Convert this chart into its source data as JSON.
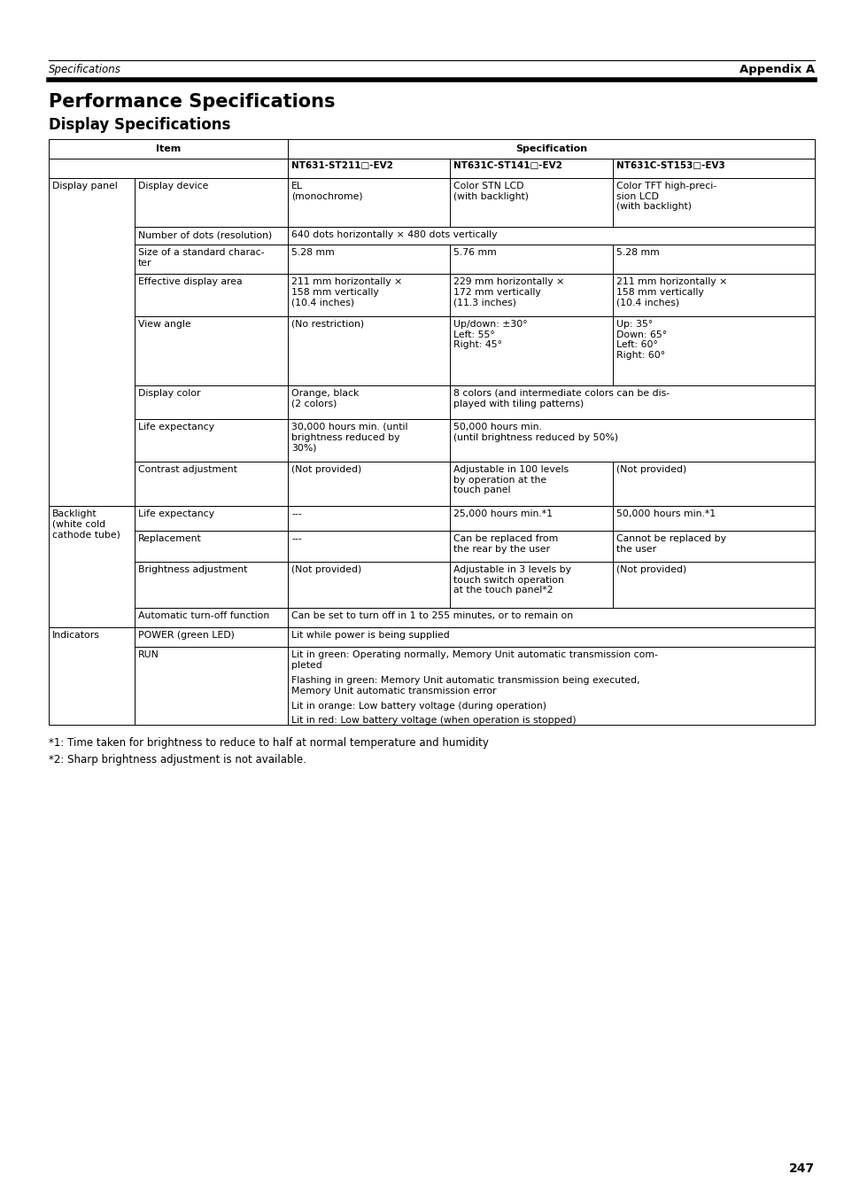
{
  "header_left": "Specifications",
  "header_right": "Appendix A",
  "title1": "Performance Specifications",
  "title2": "Display Specifications",
  "col_sub_headers": [
    "NT631-ST211□-EV2",
    "NT631C-ST141□-EV2",
    "NT631C-ST153□-EV3"
  ],
  "footnote1": "*1: Time taken for brightness to reduce to half at normal temperature and humidity",
  "footnote2": "*2: Sharp brightness adjustment is not available.",
  "page_number": "247",
  "rows": [
    {
      "group": "Display panel",
      "item": "Display device",
      "col1": "EL\n(monochrome)",
      "col2": "Color STN LCD\n(with backlight)",
      "col3": "Color TFT high-preci-\nsion LCD\n(with backlight)",
      "span": false,
      "span23": false
    },
    {
      "group": "",
      "item": "Number of dots (resolution)",
      "col1": "640 dots horizontally × 480 dots vertically",
      "col2": "",
      "col3": "",
      "span": true,
      "span23": false
    },
    {
      "group": "",
      "item": "Size of a standard charac-\nter",
      "col1": "5.28 mm",
      "col2": "5.76 mm",
      "col3": "5.28 mm",
      "span": false,
      "span23": false
    },
    {
      "group": "",
      "item": "Effective display area",
      "col1": "211 mm horizontally ×\n158 mm vertically\n(10.4 inches)",
      "col2": "229 mm horizontally ×\n172 mm vertically\n(11.3 inches)",
      "col3": "211 mm horizontally ×\n158 mm vertically\n(10.4 inches)",
      "span": false,
      "span23": false
    },
    {
      "group": "",
      "item": "View angle",
      "col1": "(No restriction)",
      "col2": "Up/down: ±30°\nLeft: 55°\nRight: 45°",
      "col3": "Up: 35°\nDown: 65°\nLeft: 60°\nRight: 60°",
      "span": false,
      "span23": false
    },
    {
      "group": "",
      "item": "Display color",
      "col1": "Orange, black\n(2 colors)",
      "col2": "8 colors (and intermediate colors can be dis-\nplayed with tiling patterns)",
      "col3": "",
      "span": false,
      "span23": true
    },
    {
      "group": "",
      "item": "Life expectancy",
      "col1": "30,000 hours min. (until\nbrightness reduced by\n30%)",
      "col2": "50,000 hours min.\n(until brightness reduced by 50%)",
      "col3": "",
      "span": false,
      "span23": true
    },
    {
      "group": "",
      "item": "Contrast adjustment",
      "col1": "(Not provided)",
      "col2": "Adjustable in 100 levels\nby operation at the\ntouch panel",
      "col3": "(Not provided)",
      "span": false,
      "span23": false
    },
    {
      "group": "Backlight\n(white cold\ncathode tube)",
      "item": "Life expectancy",
      "col1": "---",
      "col2": "25,000 hours min.*1",
      "col3": "50,000 hours min.*1",
      "span": false,
      "span23": false
    },
    {
      "group": "",
      "item": "Replacement",
      "col1": "---",
      "col2": "Can be replaced from\nthe rear by the user",
      "col3": "Cannot be replaced by\nthe user",
      "span": false,
      "span23": false
    },
    {
      "group": "",
      "item": "Brightness adjustment",
      "col1": "(Not provided)",
      "col2": "Adjustable in 3 levels by\ntouch switch operation\nat the touch panel*2",
      "col3": "(Not provided)",
      "span": false,
      "span23": false
    },
    {
      "group": "",
      "item": "Automatic turn-off function",
      "col1": "Can be set to turn off in 1 to 255 minutes, or to remain on",
      "col2": "",
      "col3": "",
      "span": true,
      "span23": false
    },
    {
      "group": "Indicators",
      "item": "POWER (green LED)",
      "col1": "Lit while power is being supplied",
      "col2": "",
      "col3": "",
      "span": true,
      "span23": false
    },
    {
      "group": "",
      "item": "RUN",
      "col1_lines": [
        "Lit in green: Operating normally, Memory Unit automatic transmission com-\npleted",
        "Flashing in green: Memory Unit automatic transmission being executed,\nMemory Unit automatic transmission error",
        "Lit in orange: Low battery voltage (during operation)",
        "Lit in red: Low battery voltage (when operation is stopped)"
      ],
      "col1": "",
      "col2": "",
      "col3": "",
      "span": true,
      "span23": false,
      "multiline_span": true
    }
  ]
}
